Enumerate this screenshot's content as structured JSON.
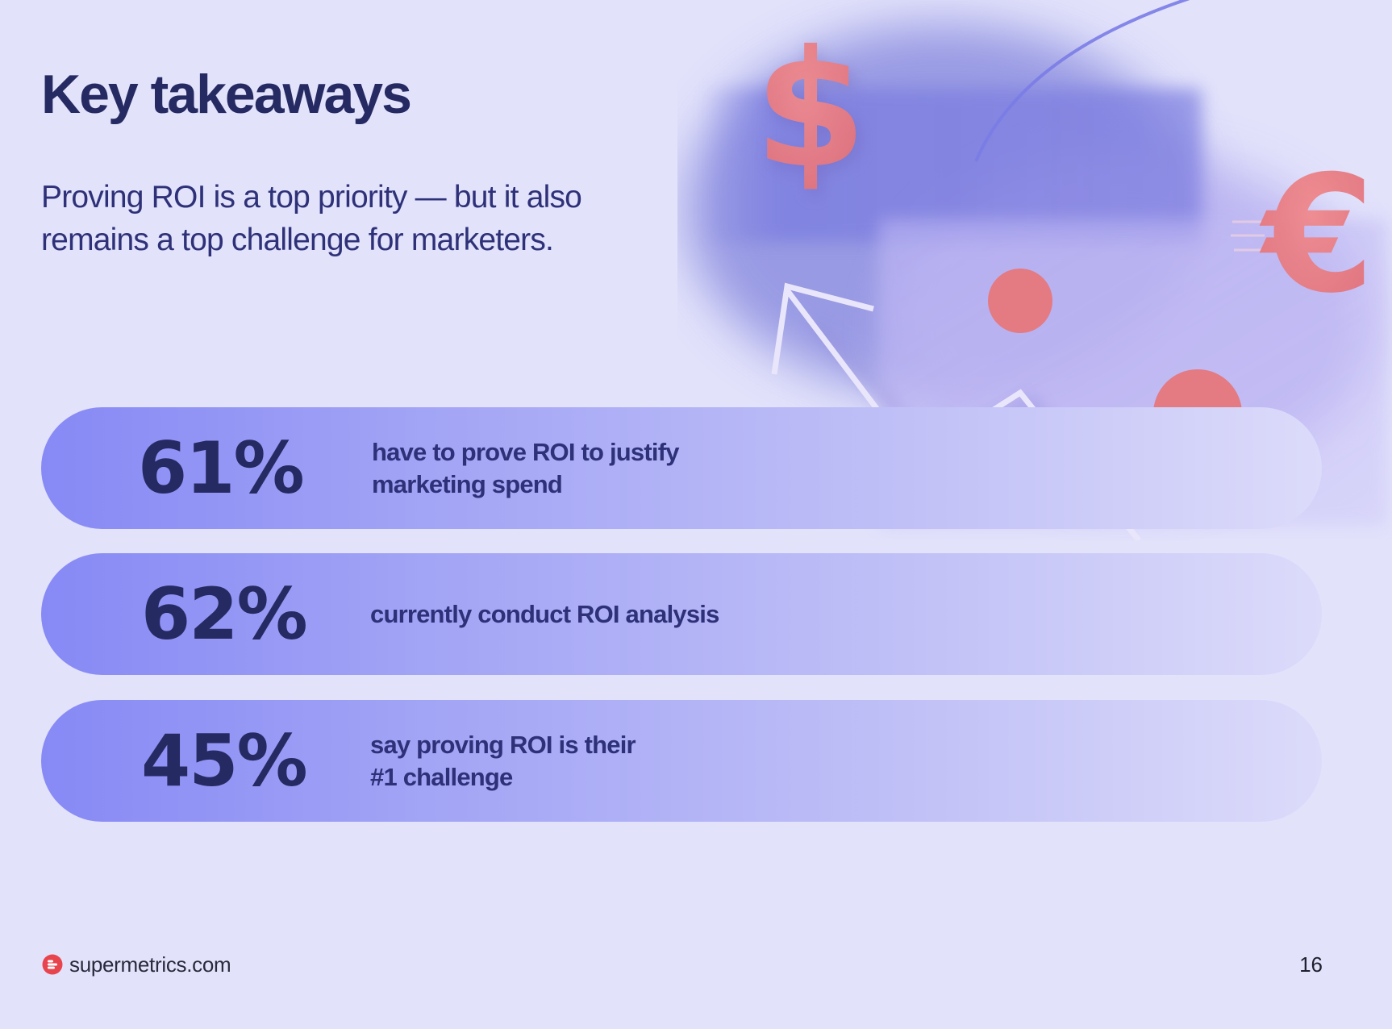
{
  "page": {
    "title": "Key takeaways",
    "subtitle": "Proving ROI is a top priority — but it also remains a top challenge for marketers."
  },
  "stats": [
    {
      "value": "61%",
      "label": "have to prove ROI to justify\nmarketing spend",
      "percent": 61
    },
    {
      "value": "62%",
      "label": "currently conduct ROI analysis",
      "percent": 62
    },
    {
      "value": "45%",
      "label": "say proving ROI is their\n#1 challenge",
      "percent": 45
    }
  ],
  "illustration": {
    "icons": [
      "dollar-sign-icon",
      "euro-sign-icon",
      "trend-arrow-icon"
    ]
  },
  "footer": {
    "brand": "supermetrics.com",
    "page_number": "16"
  },
  "colors": {
    "background": "#e2e2fb",
    "text_dark": "#262a62",
    "accent_purple": "#8789f5",
    "accent_coral": "#e97a80"
  }
}
